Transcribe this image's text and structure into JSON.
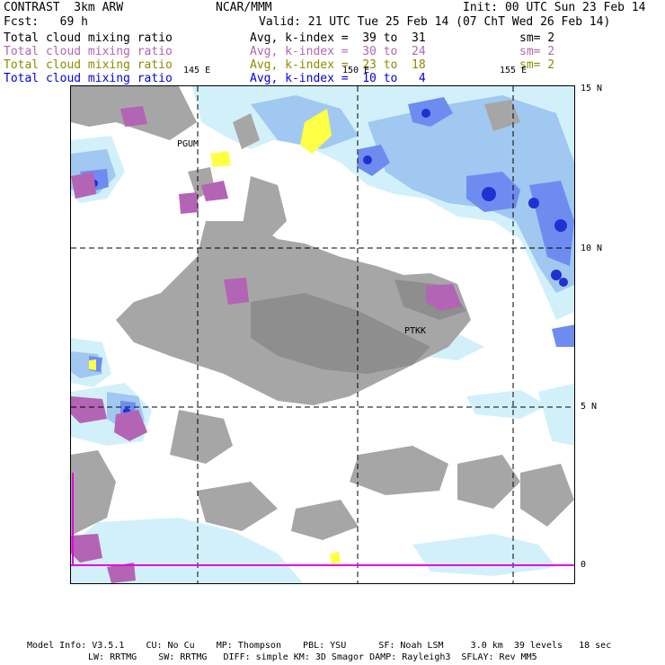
{
  "header": {
    "model": "CONTRAST  3km ARW",
    "org": "NCAR/MMM",
    "init": "Init: 00 UTC Sun 23 Feb 14",
    "fcst": "Fcst:   69 h",
    "valid": "Valid: 21 UTC Tue 25 Feb 14 (07 ChT Wed 26 Feb 14)"
  },
  "legend": [
    {
      "field": "Total cloud mixing ratio",
      "range": "Avg, k-index =  39 to  31",
      "sm": "sm= 2",
      "color": "#000000"
    },
    {
      "field": "Total cloud mixing ratio",
      "range": "Avg, k-index =  30 to  24",
      "sm": "sm= 2",
      "color": "#b464b4"
    },
    {
      "field": "Total cloud mixing ratio",
      "range": "Avg, k-index =  23 to  18",
      "sm": "sm= 2",
      "color": "#8c8c00"
    },
    {
      "field": "Total cloud mixing ratio",
      "range": "Avg, k-index =  10 to   4",
      "sm": "",
      "color": "#0000e6"
    }
  ],
  "lon_labels": [
    "145 E",
    "150 E",
    "155 E"
  ],
  "lat_labels": [
    "15 N",
    "10 N",
    "5 N",
    "0"
  ],
  "stations": [
    "PGUM",
    "PTKK"
  ],
  "footer": {
    "line1": "Model Info: V3.5.1    CU: No Cu    MP: Thompson    PBL: YSU      SF: Noah LSM     3.0 km  39 levels   18 sec",
    "line2": "LW: RRTMG    SW: RRTMG   DIFF: simple KM: 3D Smagor DAMP: Rayleigh3  SFLAY: Rev MM5"
  },
  "colors": {
    "gray": "#a6a6a6",
    "dark_gray": "#8e8e8e",
    "purple": "#b464b4",
    "yellow": "#ffff46",
    "light_blue": "#d2f0fa",
    "mid_blue": "#a0c8f0",
    "blue": "#6e8cf0",
    "deep_blue": "#1e32d2",
    "magenta_edge": "#e600e6"
  }
}
